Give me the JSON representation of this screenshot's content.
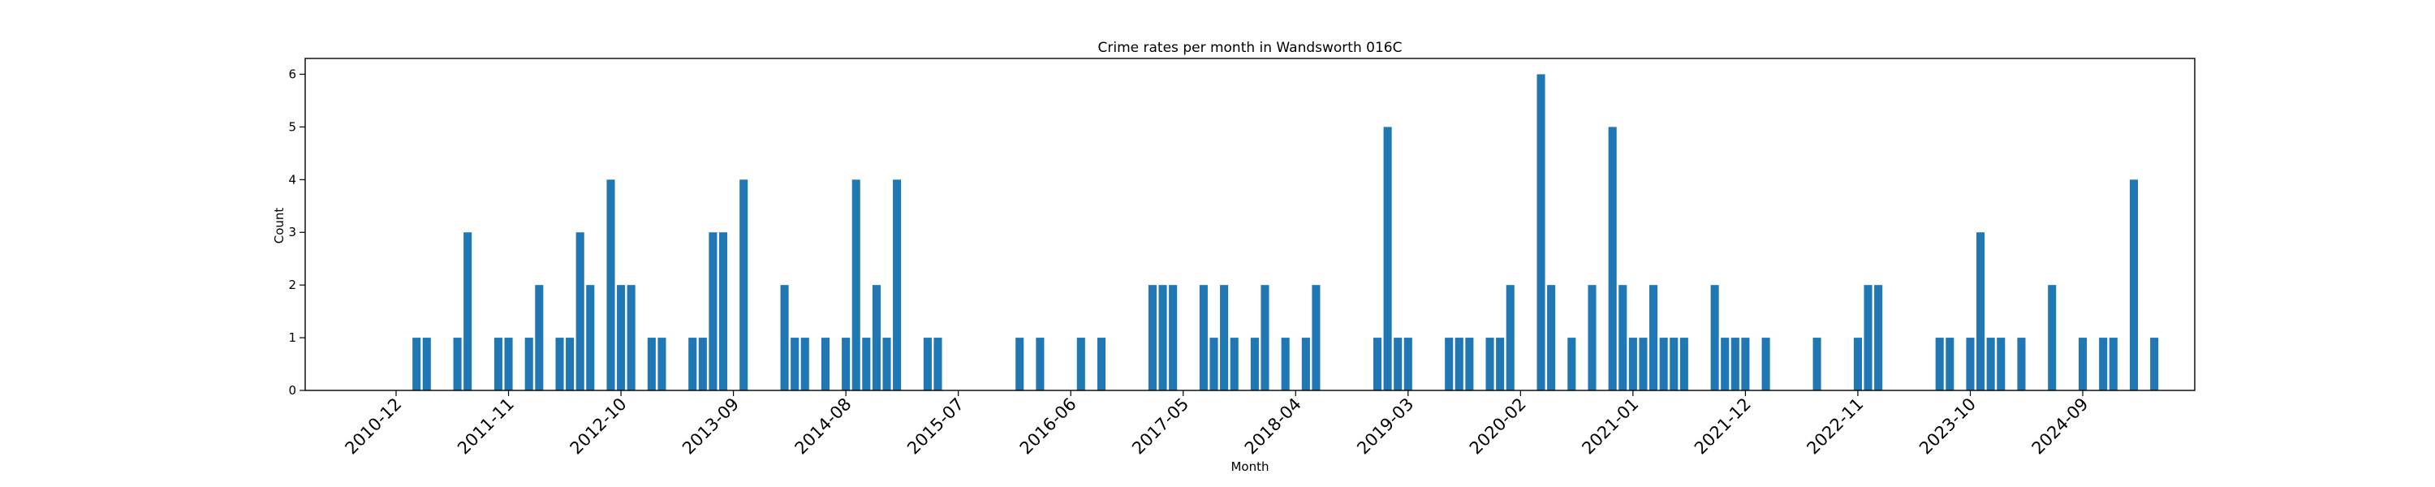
{
  "chart_data": {
    "type": "bar",
    "title": "Crime rates per month in Wandsworth 016C",
    "xlabel": "Month",
    "ylabel": "Count",
    "ylim": [
      0,
      6.3
    ],
    "y_ticks": [
      0,
      1,
      2,
      3,
      4,
      5,
      6
    ],
    "grid": false,
    "legend": "none",
    "bar_color": "#1f77b4",
    "x_tick_labels": [
      "2010-12",
      "2011-11",
      "2012-10",
      "2013-09",
      "2014-08",
      "2015-07",
      "2016-06",
      "2017-05",
      "2018-04",
      "2019-03",
      "2020-02",
      "2021-01",
      "2021-12",
      "2022-11",
      "2023-10",
      "2024-09"
    ],
    "categories": [
      "2011-02",
      "2011-03",
      "2011-06",
      "2011-07",
      "2011-10",
      "2011-11",
      "2012-01",
      "2012-02",
      "2012-04",
      "2012-05",
      "2012-06",
      "2012-07",
      "2012-09",
      "2012-10",
      "2012-11",
      "2013-01",
      "2013-02",
      "2013-05",
      "2013-06",
      "2013-07",
      "2013-08",
      "2013-10",
      "2014-02",
      "2014-03",
      "2014-04",
      "2014-06",
      "2014-08",
      "2014-09",
      "2014-10",
      "2014-11",
      "2014-12",
      "2015-01",
      "2015-04",
      "2015-05",
      "2016-01",
      "2016-03",
      "2016-07",
      "2016-09",
      "2017-02",
      "2017-03",
      "2017-04",
      "2017-07",
      "2017-08",
      "2017-09",
      "2017-10",
      "2017-12",
      "2018-01",
      "2018-03",
      "2018-05",
      "2018-06",
      "2018-12",
      "2019-01",
      "2019-02",
      "2019-03",
      "2019-07",
      "2019-08",
      "2019-09",
      "2019-11",
      "2019-12",
      "2020-01",
      "2020-04",
      "2020-05",
      "2020-07",
      "2020-09",
      "2020-11",
      "2020-12",
      "2021-01",
      "2021-02",
      "2021-03",
      "2021-04",
      "2021-05",
      "2021-06",
      "2021-09",
      "2021-10",
      "2021-11",
      "2021-12",
      "2022-02",
      "2022-07",
      "2022-11",
      "2022-12",
      "2023-01",
      "2023-07",
      "2023-08",
      "2023-10",
      "2023-11",
      "2023-12",
      "2024-01",
      "2024-03",
      "2024-06",
      "2024-09",
      "2024-11",
      "2024-12",
      "2025-02",
      "2025-04"
    ],
    "values": [
      1,
      1,
      1,
      3,
      1,
      1,
      1,
      2,
      1,
      1,
      3,
      2,
      4,
      2,
      2,
      1,
      1,
      1,
      1,
      3,
      3,
      4,
      2,
      1,
      1,
      1,
      1,
      4,
      1,
      2,
      1,
      4,
      1,
      1,
      1,
      1,
      1,
      1,
      2,
      2,
      2,
      2,
      1,
      2,
      1,
      1,
      2,
      1,
      1,
      2,
      1,
      5,
      1,
      1,
      1,
      1,
      1,
      1,
      1,
      2,
      6,
      2,
      1,
      2,
      5,
      2,
      1,
      1,
      2,
      1,
      1,
      1,
      2,
      1,
      1,
      1,
      1,
      1,
      1,
      2,
      2,
      1,
      1,
      1,
      3,
      1,
      1,
      1,
      2,
      1,
      1,
      1,
      4,
      1
    ]
  }
}
